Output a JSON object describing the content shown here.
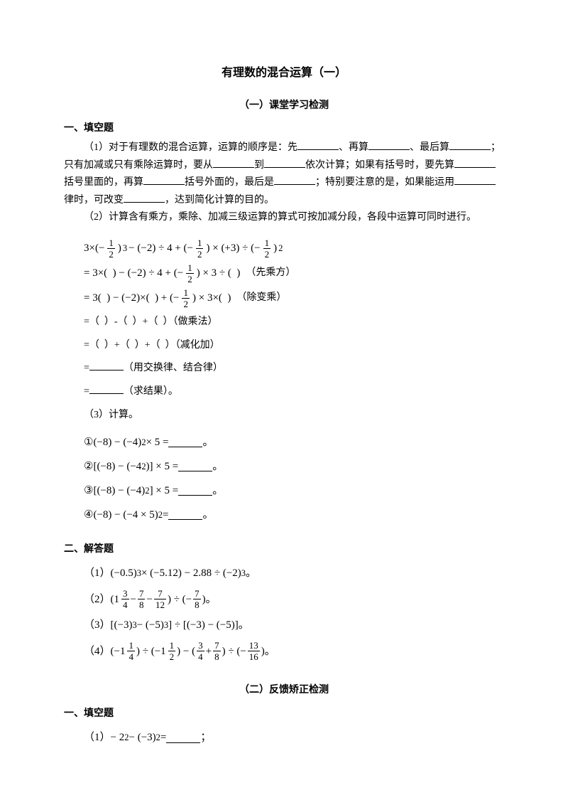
{
  "title": "有理数的混合运算（一）",
  "section1": {
    "heading": "（一）课堂学习检测",
    "sub1": "一、填空题",
    "p1_prefix": "（1）对于有理数的混合运算，运算的顺序是：先",
    "p1_a": "、再算",
    "p1_b": "、最后算",
    "p1_c": "；只有加减或只有乘除运算时，要从",
    "p1_d": "到",
    "p1_e": "依次计算；如果有括号时，要先算",
    "p1_f": "括号里面的，再算",
    "p1_g": "括号外面的，最后是",
    "p1_h": "；特别要注意的是，如果能运用",
    "p1_i": "律时，可改变",
    "p1_j": "，达到简化计算的目的。",
    "p2": "（2）计算含有乘方，乘除、加减三级运算的算式可按加减分段，各段中运算可同时进行。",
    "step1_note": "（先乘方）",
    "step2_note": "（除变乘）",
    "step3_note": "（做乘法）",
    "step4_note": "（减化加）",
    "step5_note": "（用交换律、结合律）",
    "step6_note": "（求结果）",
    "p3": "（3）计算。",
    "sub2": "二、解答题"
  },
  "section2": {
    "heading": "（二）反馈矫正检测",
    "sub1": "一、填空题"
  }
}
